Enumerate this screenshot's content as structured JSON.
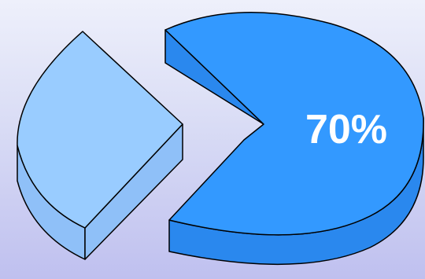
{
  "chart_data": {
    "type": "pie",
    "title": "",
    "legend": "none",
    "slices": [
      {
        "value": 70,
        "label": "70%",
        "color": "#3399ff",
        "side_color": "#2a88ee",
        "exploded": false
      },
      {
        "value": 30,
        "label": "",
        "color": "#99ccff",
        "side_color": "#8fc0f8",
        "exploded": true
      }
    ]
  }
}
